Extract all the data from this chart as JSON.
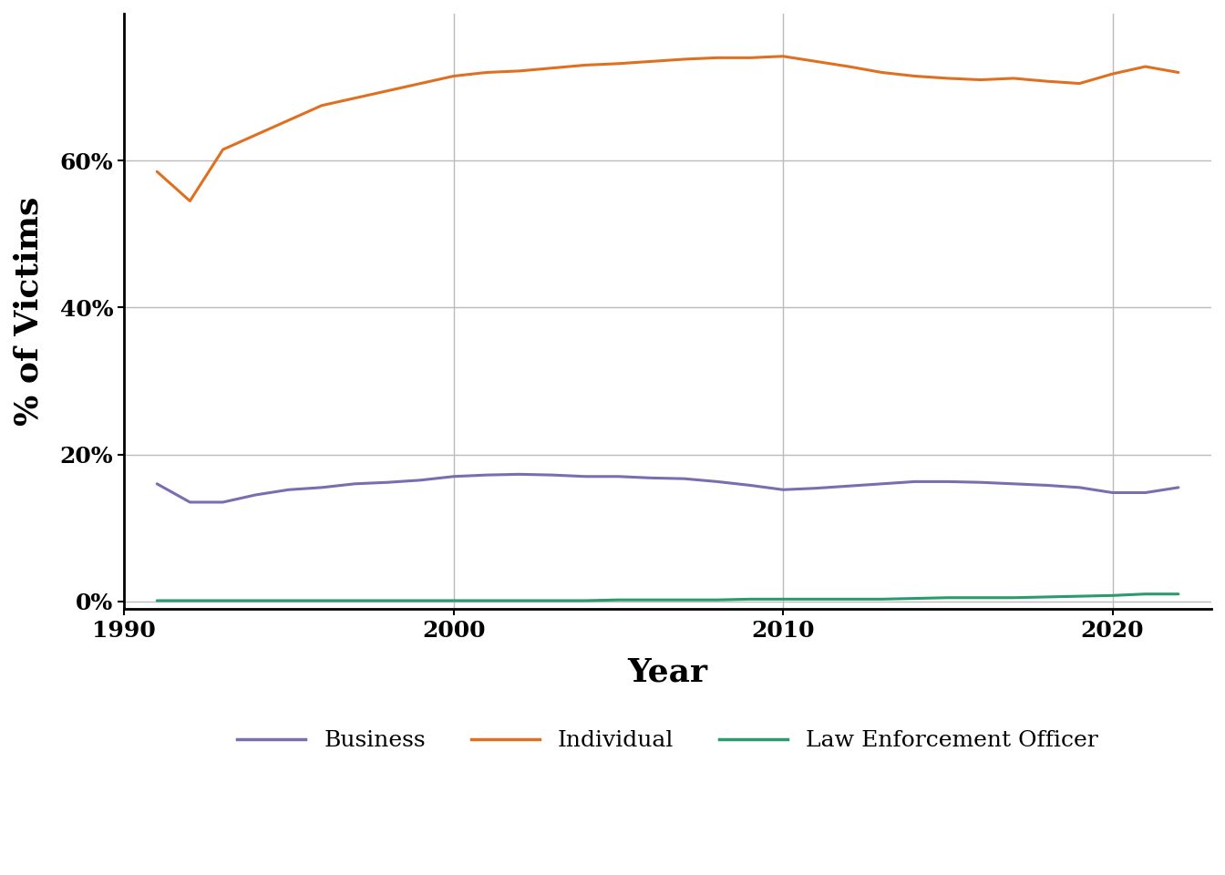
{
  "years": [
    1991,
    1992,
    1993,
    1994,
    1995,
    1996,
    1997,
    1998,
    1999,
    2000,
    2001,
    2002,
    2003,
    2004,
    2005,
    2006,
    2007,
    2008,
    2009,
    2010,
    2011,
    2012,
    2013,
    2014,
    2015,
    2016,
    2017,
    2018,
    2019,
    2020,
    2021,
    2022
  ],
  "individual": [
    0.585,
    0.545,
    0.615,
    0.635,
    0.655,
    0.675,
    0.685,
    0.695,
    0.705,
    0.715,
    0.72,
    0.722,
    0.726,
    0.73,
    0.732,
    0.735,
    0.738,
    0.74,
    0.74,
    0.742,
    0.735,
    0.728,
    0.72,
    0.715,
    0.712,
    0.71,
    0.712,
    0.708,
    0.705,
    0.718,
    0.728,
    0.72
  ],
  "business": [
    0.16,
    0.135,
    0.135,
    0.145,
    0.152,
    0.155,
    0.16,
    0.162,
    0.165,
    0.17,
    0.172,
    0.173,
    0.172,
    0.17,
    0.17,
    0.168,
    0.167,
    0.163,
    0.158,
    0.152,
    0.154,
    0.157,
    0.16,
    0.163,
    0.163,
    0.162,
    0.16,
    0.158,
    0.155,
    0.148,
    0.148,
    0.155
  ],
  "law_enforcement": [
    0.001,
    0.001,
    0.001,
    0.001,
    0.001,
    0.001,
    0.001,
    0.001,
    0.001,
    0.001,
    0.001,
    0.001,
    0.001,
    0.001,
    0.002,
    0.002,
    0.002,
    0.002,
    0.003,
    0.003,
    0.003,
    0.003,
    0.003,
    0.004,
    0.005,
    0.005,
    0.005,
    0.006,
    0.007,
    0.008,
    0.01,
    0.01
  ],
  "individual_color": "#E07020",
  "business_color": "#7B6DB0",
  "law_enforcement_color": "#2A9B6A",
  "line_width": 2.2,
  "xlabel": "Year",
  "ylabel": "% of Victims",
  "yticks": [
    0.0,
    0.2,
    0.4,
    0.6
  ],
  "ytick_labels": [
    "0%",
    "20%",
    "40%",
    "60%"
  ],
  "xticks": [
    1990,
    2000,
    2010,
    2020
  ],
  "xtick_labels": [
    "1990",
    "2000",
    "2010",
    "2020"
  ],
  "xlim": [
    1990,
    2023
  ],
  "ylim": [
    -0.01,
    0.8
  ],
  "grid_color": "#BBBBBB",
  "background_color": "#FFFFFF",
  "legend_labels": [
    "Business",
    "Individual",
    "Law Enforcement Officer"
  ]
}
